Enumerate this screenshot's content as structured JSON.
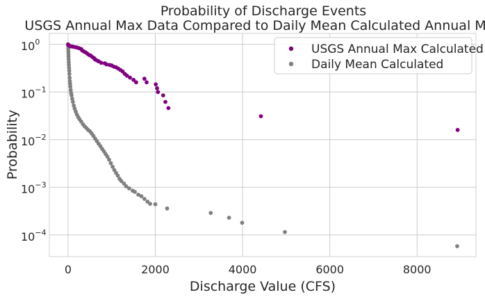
{
  "chart_data": {
    "type": "scatter",
    "title": "Probability of Discharge Events",
    "subtitle": "USGS Annual Max Data Compared to Daily Mean Calculated Annual Max",
    "xlabel": "Discharge Value (CFS)",
    "ylabel": "Probability",
    "xlim": [
      -430,
      9350
    ],
    "ylim": [
      3.5e-05,
      1.7
    ],
    "yscale": "log",
    "grid": true,
    "legend": "top-right",
    "x_ticks": [
      0,
      2000,
      4000,
      6000,
      8000
    ],
    "x_tick_labels": [
      "0",
      "2000",
      "4000",
      "6000",
      "8000"
    ],
    "y_ticks": [
      0.0001,
      0.001,
      0.01,
      0.1,
      1
    ],
    "y_tick_labels": [
      {
        "base": "10",
        "exp": "−4"
      },
      {
        "base": "10",
        "exp": "−3"
      },
      {
        "base": "10",
        "exp": "−2"
      },
      {
        "base": "10",
        "exp": "−1"
      },
      {
        "base": "10",
        "exp": "0"
      }
    ],
    "series": [
      {
        "name": "USGS Annual Max Calculated",
        "color": "#800080",
        "points": [
          [
            0,
            1.0
          ],
          [
            10,
            0.97
          ],
          [
            30,
            0.94
          ],
          [
            60,
            0.91
          ],
          [
            100,
            0.9
          ],
          [
            150,
            0.88
          ],
          [
            200,
            0.86
          ],
          [
            250,
            0.83
          ],
          [
            300,
            0.8
          ],
          [
            320,
            0.75
          ],
          [
            360,
            0.71
          ],
          [
            400,
            0.68
          ],
          [
            440,
            0.64
          ],
          [
            480,
            0.6
          ],
          [
            520,
            0.58
          ],
          [
            560,
            0.54
          ],
          [
            600,
            0.51
          ],
          [
            620,
            0.48
          ],
          [
            660,
            0.46
          ],
          [
            700,
            0.44
          ],
          [
            760,
            0.41
          ],
          [
            840,
            0.4
          ],
          [
            880,
            0.38
          ],
          [
            950,
            0.37
          ],
          [
            1000,
            0.36
          ],
          [
            1050,
            0.34
          ],
          [
            1100,
            0.33
          ],
          [
            1150,
            0.31
          ],
          [
            1200,
            0.29
          ],
          [
            1250,
            0.27
          ],
          [
            1300,
            0.24
          ],
          [
            1350,
            0.22
          ],
          [
            1420,
            0.2
          ],
          [
            1500,
            0.18
          ],
          [
            1560,
            0.16
          ],
          [
            1750,
            0.19
          ],
          [
            1800,
            0.16
          ],
          [
            2010,
            0.145
          ],
          [
            2040,
            0.12
          ],
          [
            2060,
            0.1
          ],
          [
            2180,
            0.085
          ],
          [
            2230,
            0.062
          ],
          [
            2300,
            0.046
          ],
          [
            4420,
            0.031
          ],
          [
            8930,
            0.016
          ]
        ]
      },
      {
        "name": "Daily Mean Calculated",
        "color": "#808080",
        "points": [
          [
            0,
            0.98
          ],
          [
            2,
            0.9
          ],
          [
            4,
            0.8
          ],
          [
            6,
            0.7
          ],
          [
            8,
            0.62
          ],
          [
            10,
            0.55
          ],
          [
            12,
            0.48
          ],
          [
            15,
            0.42
          ],
          [
            18,
            0.37
          ],
          [
            22,
            0.32
          ],
          [
            26,
            0.28
          ],
          [
            30,
            0.24
          ],
          [
            35,
            0.2
          ],
          [
            40,
            0.17
          ],
          [
            46,
            0.15
          ],
          [
            52,
            0.13
          ],
          [
            60,
            0.11
          ],
          [
            70,
            0.095
          ],
          [
            80,
            0.085
          ],
          [
            95,
            0.072
          ],
          [
            110,
            0.062
          ],
          [
            130,
            0.052
          ],
          [
            150,
            0.045
          ],
          [
            175,
            0.039
          ],
          [
            200,
            0.034
          ],
          [
            230,
            0.03
          ],
          [
            260,
            0.027
          ],
          [
            300,
            0.024
          ],
          [
            340,
            0.021
          ],
          [
            380,
            0.019
          ],
          [
            420,
            0.0175
          ],
          [
            460,
            0.016
          ],
          [
            500,
            0.015
          ],
          [
            540,
            0.0135
          ],
          [
            580,
            0.012
          ],
          [
            620,
            0.0105
          ],
          [
            660,
            0.0093
          ],
          [
            700,
            0.0082
          ],
          [
            740,
            0.0073
          ],
          [
            780,
            0.0064
          ],
          [
            820,
            0.0057
          ],
          [
            860,
            0.005
          ],
          [
            900,
            0.0044
          ],
          [
            940,
            0.0038
          ],
          [
            980,
            0.0032
          ],
          [
            1020,
            0.0027
          ],
          [
            1060,
            0.0023
          ],
          [
            1100,
            0.002
          ],
          [
            1140,
            0.00175
          ],
          [
            1180,
            0.0015
          ],
          [
            1220,
            0.00135
          ],
          [
            1280,
            0.0012
          ],
          [
            1330,
            0.00105
          ],
          [
            1400,
            0.00095
          ],
          [
            1480,
            0.00085
          ],
          [
            1530,
            0.0008
          ],
          [
            1610,
            0.0007
          ],
          [
            1680,
            0.00065
          ],
          [
            1750,
            0.00057
          ],
          [
            1820,
            0.0005
          ],
          [
            1880,
            0.00045
          ],
          [
            2000,
            0.00044
          ],
          [
            2270,
            0.00036
          ],
          [
            3270,
            0.00029
          ],
          [
            3690,
            0.00023
          ],
          [
            3990,
            0.00018
          ],
          [
            4970,
            0.000115
          ],
          [
            8920,
            5.8e-05
          ]
        ]
      }
    ]
  }
}
